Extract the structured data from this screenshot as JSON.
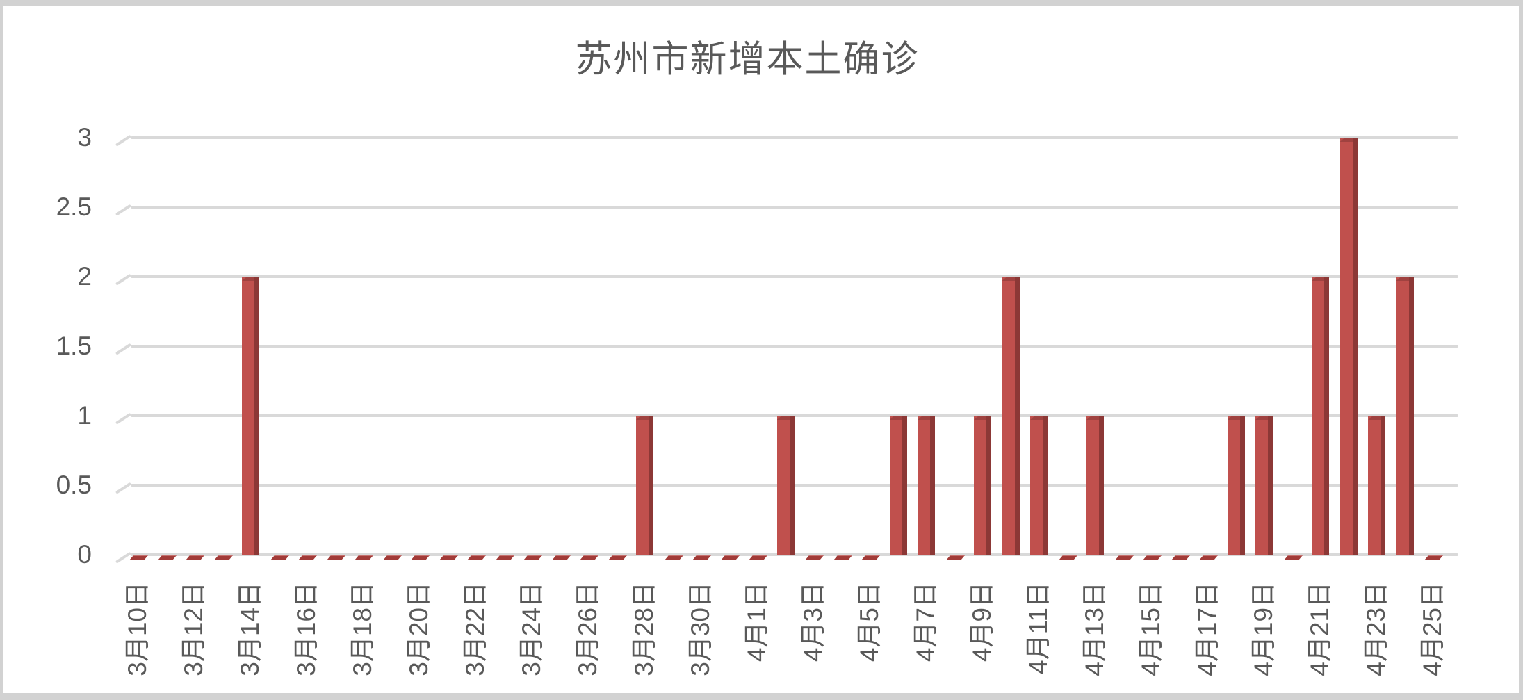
{
  "chart_data": {
    "type": "bar",
    "style": "excel-3d-clustered-column",
    "title": "苏州市新增本土确诊",
    "xlabel": "",
    "ylabel": "",
    "legend": "none",
    "grid": true,
    "ylim": [
      0,
      3
    ],
    "y_ticks": [
      "0",
      "0.5",
      "1",
      "1.5",
      "2",
      "2.5",
      "3"
    ],
    "x_tick_label_every": 2,
    "categories": [
      "3月10日",
      "3月11日",
      "3月12日",
      "3月13日",
      "3月14日",
      "3月15日",
      "3月16日",
      "3月17日",
      "3月18日",
      "3月19日",
      "3月20日",
      "3月21日",
      "3月22日",
      "3月23日",
      "3月24日",
      "3月25日",
      "3月26日",
      "3月27日",
      "3月28日",
      "3月29日",
      "3月30日",
      "3月31日",
      "4月1日",
      "4月2日",
      "4月3日",
      "4月4日",
      "4月5日",
      "4月6日",
      "4月7日",
      "4月8日",
      "4月9日",
      "4月10日",
      "4月11日",
      "4月12日",
      "4月13日",
      "4月14日",
      "4月15日",
      "4月16日",
      "4月17日",
      "4月18日",
      "4月19日",
      "4月20日",
      "4月21日",
      "4月22日",
      "4月23日",
      "4月24日",
      "4月25日"
    ],
    "values": [
      0,
      0,
      0,
      0,
      2,
      0,
      0,
      0,
      0,
      0,
      0,
      0,
      0,
      0,
      0,
      0,
      0,
      0,
      1,
      0,
      0,
      0,
      0,
      1,
      0,
      0,
      0,
      1,
      1,
      0,
      1,
      2,
      1,
      0,
      1,
      0,
      0,
      0,
      0,
      1,
      1,
      0,
      2,
      3,
      1,
      2,
      0
    ],
    "colors": {
      "bar_front": "#c0504d",
      "bar_side": "#8c3836",
      "bar_cap": "#a04240",
      "zero_marker": "#a23b38",
      "gridline": "#d9d9d9",
      "text": "#595959",
      "frame_border": "#d2d2d2"
    }
  }
}
